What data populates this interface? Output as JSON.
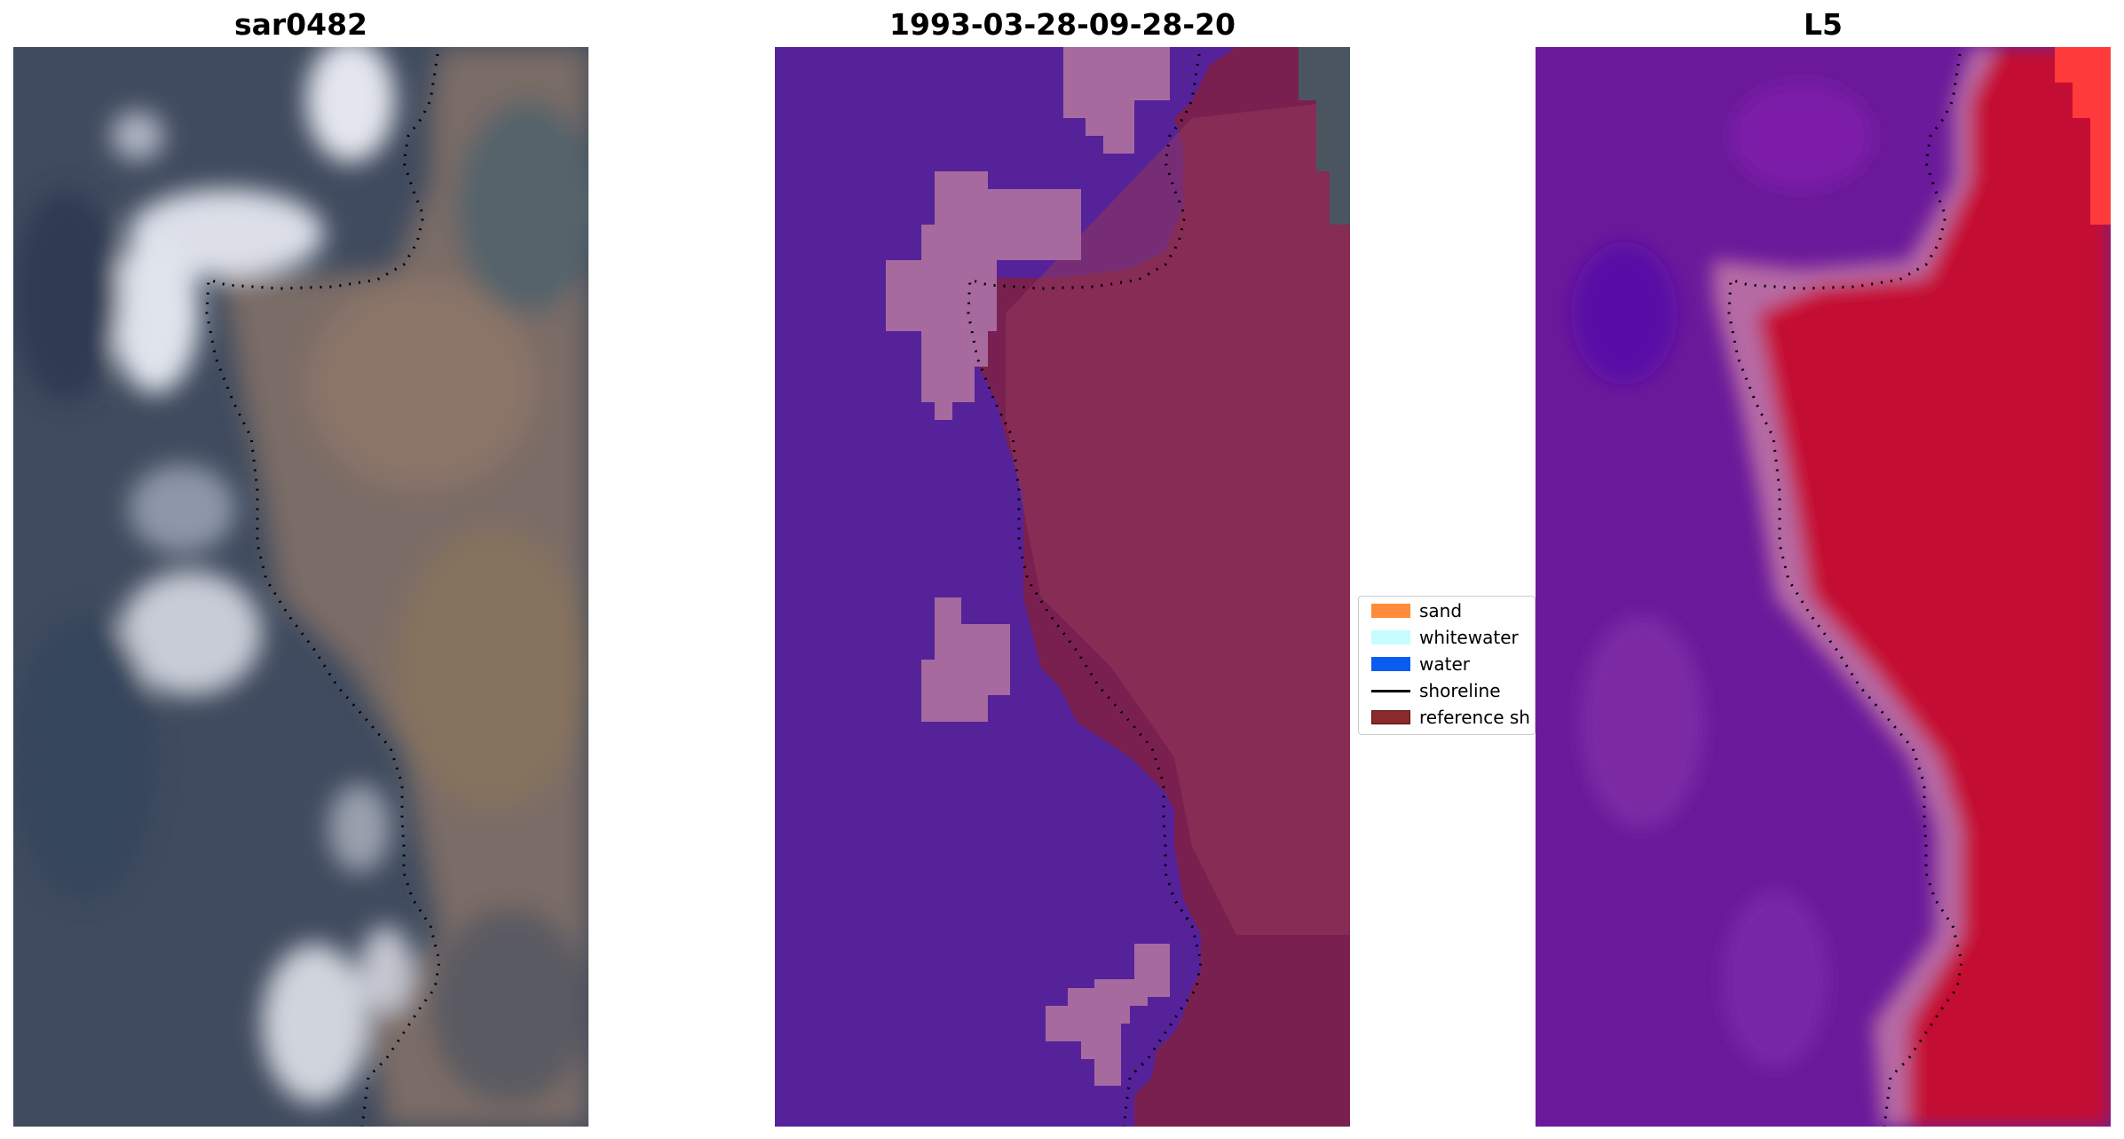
{
  "panels": {
    "left": {
      "title": "sar0482"
    },
    "middle": {
      "title": "1993-03-28-09-28-20"
    },
    "right": {
      "title": "L5"
    }
  },
  "legend": {
    "items": [
      {
        "label": "sand",
        "color": "#ff8c3a"
      },
      {
        "label": "whitewater",
        "color": "#c8fcff"
      },
      {
        "label": "water",
        "color": "#0a5cf0"
      },
      {
        "label": "shoreline",
        "color": "#000000"
      },
      {
        "label": "reference sh",
        "color": "#8b2a2a"
      }
    ]
  },
  "colors": {
    "water_class": "#55229a",
    "whitewater_class": "#a66a9f",
    "land_class": "#7a2050",
    "index_low": "#6a1a9a",
    "index_high": "#c40a30",
    "shoreline": "#000000"
  }
}
